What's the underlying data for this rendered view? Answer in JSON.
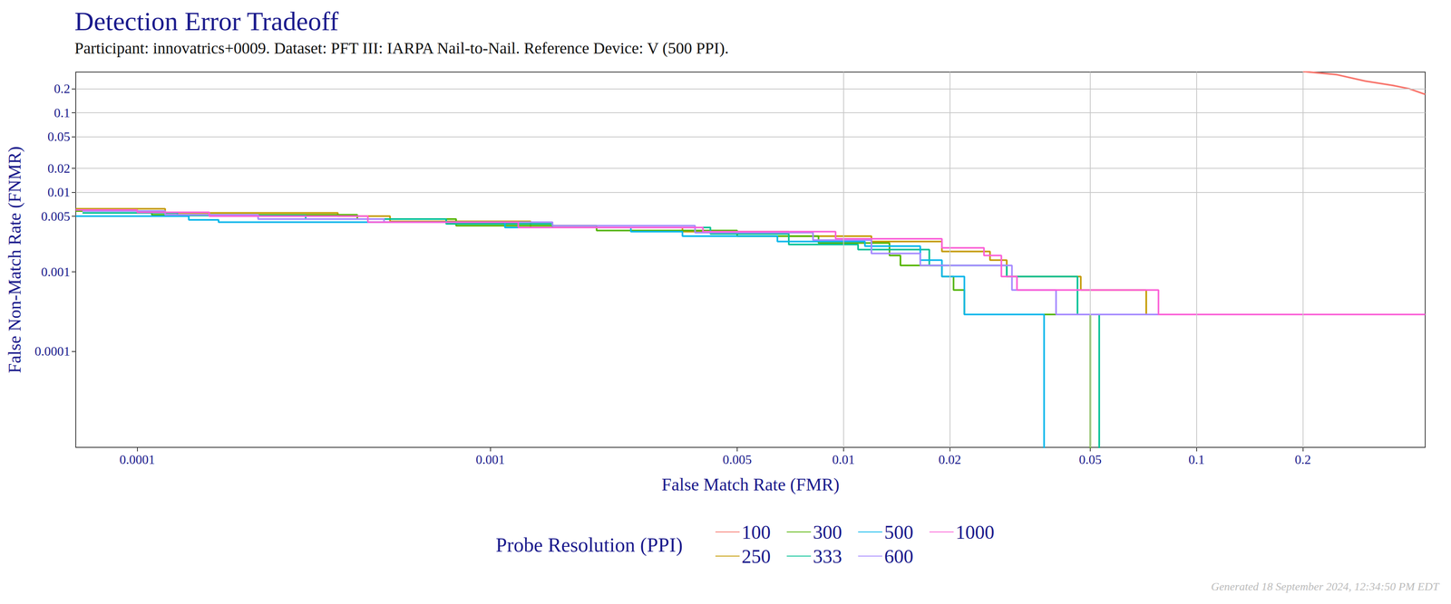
{
  "chart_data": {
    "type": "line",
    "title": "Detection Error Tradeoff",
    "subtitle": "Participant: innovatrics+0009. Dataset: PFT III: IARPA Nail-to-Nail. Reference Device: V (500 PPI).",
    "x_label": "False Match Rate (FMR)",
    "y_label": "False Non-Match Rate (FNMR)",
    "legend_title": "Probe Resolution (PPI)",
    "annotations": [
      "Generated 18 September 2024, 12:34:50 PM EDT"
    ],
    "log": true,
    "grid": true,
    "legend": "bottom",
    "line_style": "step",
    "xlim": [
      6.7e-05,
      0.444
    ],
    "ylim": [
      6.2e-06,
      0.324
    ],
    "xticks": [
      0.0001,
      0.001,
      0.005,
      0.01,
      0.02,
      0.05,
      0.1,
      0.2
    ],
    "yticks": [
      0.0001,
      0.001,
      0.005,
      0.01,
      0.02,
      0.05,
      0.1,
      0.2
    ],
    "series": [
      {
        "name": "100",
        "color": "#F8766D",
        "values": [
          [
            0.2,
            0.33
          ],
          [
            0.25,
            0.3
          ],
          [
            0.3,
            0.25
          ],
          [
            0.36,
            0.22
          ],
          [
            0.4,
            0.2
          ],
          [
            0.444,
            0.17
          ]
        ]
      },
      {
        "name": "250",
        "color": "#C49A00",
        "values": [
          [
            6.7e-05,
            0.0062
          ],
          [
            0.00012,
            0.0062
          ],
          [
            0.00012,
            0.0055
          ],
          [
            0.00037,
            0.0055
          ],
          [
            0.00037,
            0.005
          ],
          [
            0.00052,
            0.005
          ],
          [
            0.00052,
            0.0043
          ],
          [
            0.0013,
            0.0043
          ],
          [
            0.0013,
            0.0036
          ],
          [
            0.0035,
            0.0036
          ],
          [
            0.0035,
            0.0032
          ],
          [
            0.007,
            0.0032
          ],
          [
            0.007,
            0.0028
          ],
          [
            0.012,
            0.0028
          ],
          [
            0.012,
            0.0024
          ],
          [
            0.019,
            0.0024
          ],
          [
            0.019,
            0.0018
          ],
          [
            0.026,
            0.0018
          ],
          [
            0.026,
            0.0014
          ],
          [
            0.029,
            0.0014
          ],
          [
            0.029,
            0.00087
          ],
          [
            0.047,
            0.00087
          ],
          [
            0.047,
            0.00059
          ],
          [
            0.072,
            0.00059
          ],
          [
            0.072,
            0.00029
          ],
          [
            0.444,
            0.00029
          ]
        ]
      },
      {
        "name": "300",
        "color": "#53B400",
        "values": [
          [
            6.7e-05,
            0.0058
          ],
          [
            0.00011,
            0.0058
          ],
          [
            0.00011,
            0.0052
          ],
          [
            0.00042,
            0.0052
          ],
          [
            0.00042,
            0.0046
          ],
          [
            0.0008,
            0.0046
          ],
          [
            0.0008,
            0.0038
          ],
          [
            0.002,
            0.0038
          ],
          [
            0.002,
            0.0033
          ],
          [
            0.005,
            0.0033
          ],
          [
            0.005,
            0.0028
          ],
          [
            0.0085,
            0.0028
          ],
          [
            0.0085,
            0.0023
          ],
          [
            0.0135,
            0.0023
          ],
          [
            0.0135,
            0.0016
          ],
          [
            0.0145,
            0.0016
          ],
          [
            0.0145,
            0.0012
          ],
          [
            0.019,
            0.0012
          ],
          [
            0.019,
            0.00087
          ],
          [
            0.0205,
            0.00087
          ],
          [
            0.0205,
            0.00059
          ],
          [
            0.022,
            0.00059
          ],
          [
            0.022,
            0.00029
          ],
          [
            0.05,
            0.00029
          ],
          [
            0.05,
            1e-06
          ]
        ]
      },
      {
        "name": "333",
        "color": "#00C094",
        "values": [
          [
            7e-05,
            0.0055
          ],
          [
            0.00013,
            0.0055
          ],
          [
            0.00013,
            0.0051
          ],
          [
            0.0003,
            0.0051
          ],
          [
            0.0003,
            0.0046
          ],
          [
            0.00075,
            0.0046
          ],
          [
            0.00075,
            0.004
          ],
          [
            0.0015,
            0.004
          ],
          [
            0.0015,
            0.0036
          ],
          [
            0.0042,
            0.0036
          ],
          [
            0.0042,
            0.003
          ],
          [
            0.007,
            0.003
          ],
          [
            0.007,
            0.0022
          ],
          [
            0.011,
            0.0022
          ],
          [
            0.011,
            0.0019
          ],
          [
            0.0175,
            0.0019
          ],
          [
            0.0175,
            0.0012
          ],
          [
            0.029,
            0.0012
          ],
          [
            0.029,
            0.00087
          ],
          [
            0.046,
            0.00087
          ],
          [
            0.046,
            0.00029
          ],
          [
            0.053,
            0.00029
          ],
          [
            0.053,
            1e-06
          ]
        ]
      },
      {
        "name": "500",
        "color": "#00B6EB",
        "values": [
          [
            6.7e-05,
            0.005
          ],
          [
            0.00014,
            0.005
          ],
          [
            0.00014,
            0.0045
          ],
          [
            0.00017,
            0.0045
          ],
          [
            0.00017,
            0.0042
          ],
          [
            0.0011,
            0.0042
          ],
          [
            0.0011,
            0.0036
          ],
          [
            0.0025,
            0.0036
          ],
          [
            0.0025,
            0.0032
          ],
          [
            0.0035,
            0.0032
          ],
          [
            0.0035,
            0.0028
          ],
          [
            0.0065,
            0.0028
          ],
          [
            0.0065,
            0.0024
          ],
          [
            0.0115,
            0.0024
          ],
          [
            0.0115,
            0.0021
          ],
          [
            0.0165,
            0.0021
          ],
          [
            0.0165,
            0.0014
          ],
          [
            0.019,
            0.0014
          ],
          [
            0.019,
            0.00087
          ],
          [
            0.022,
            0.00087
          ],
          [
            0.022,
            0.00029
          ],
          [
            0.037,
            0.00029
          ],
          [
            0.037,
            1e-06
          ]
        ]
      },
      {
        "name": "600",
        "color": "#A58AFF",
        "values": [
          [
            7e-05,
            0.0058
          ],
          [
            0.00012,
            0.0058
          ],
          [
            0.00012,
            0.0052
          ],
          [
            0.00022,
            0.0052
          ],
          [
            0.00022,
            0.0046
          ],
          [
            0.0005,
            0.0046
          ],
          [
            0.0005,
            0.0042
          ],
          [
            0.0015,
            0.0042
          ],
          [
            0.0015,
            0.0038
          ],
          [
            0.0038,
            0.0038
          ],
          [
            0.0038,
            0.0031
          ],
          [
            0.0082,
            0.0031
          ],
          [
            0.0082,
            0.0025
          ],
          [
            0.012,
            0.0025
          ],
          [
            0.012,
            0.0017
          ],
          [
            0.0165,
            0.0017
          ],
          [
            0.0165,
            0.0012
          ],
          [
            0.03,
            0.0012
          ],
          [
            0.03,
            0.00059
          ],
          [
            0.04,
            0.00059
          ],
          [
            0.04,
            0.00029
          ],
          [
            0.444,
            0.00029
          ]
        ]
      },
      {
        "name": "1000",
        "color": "#FB61D7",
        "values": [
          [
            6.7e-05,
            0.006
          ],
          [
            0.0001,
            0.006
          ],
          [
            0.0001,
            0.0056
          ],
          [
            0.00016,
            0.0056
          ],
          [
            0.00016,
            0.005
          ],
          [
            0.00045,
            0.005
          ],
          [
            0.00045,
            0.0042
          ],
          [
            0.0012,
            0.0042
          ],
          [
            0.0012,
            0.0036
          ],
          [
            0.004,
            0.0036
          ],
          [
            0.004,
            0.0032
          ],
          [
            0.0095,
            0.0032
          ],
          [
            0.0095,
            0.0026
          ],
          [
            0.019,
            0.0026
          ],
          [
            0.019,
            0.002
          ],
          [
            0.025,
            0.002
          ],
          [
            0.025,
            0.0016
          ],
          [
            0.028,
            0.0016
          ],
          [
            0.028,
            0.00087
          ],
          [
            0.031,
            0.00087
          ],
          [
            0.031,
            0.00059
          ],
          [
            0.078,
            0.00059
          ],
          [
            0.078,
            0.00029
          ],
          [
            0.444,
            0.00029
          ]
        ]
      }
    ]
  }
}
